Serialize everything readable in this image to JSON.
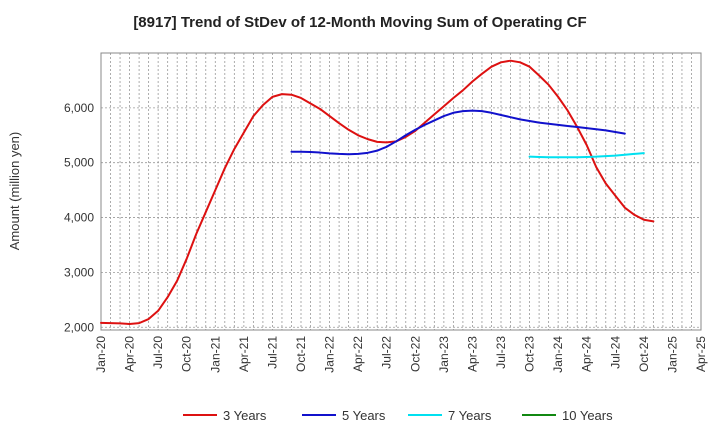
{
  "chart_data": {
    "type": "line",
    "title": "[8917]  Trend of StDev of 12-Month Moving Sum of Operating CF",
    "ylabel": "Amount (million yen)",
    "xlabel": "",
    "ylim": [
      1950,
      7000
    ],
    "yticks": [
      2000,
      3000,
      4000,
      5000,
      6000
    ],
    "ytick_labels": [
      "2,000",
      "3,000",
      "4,000",
      "5,000",
      "6,000"
    ],
    "x_start": "2020-01",
    "x_end": "2025-04",
    "xtick_labels": [
      "Jan-20",
      "Apr-20",
      "Jul-20",
      "Oct-20",
      "Jan-21",
      "Apr-21",
      "Jul-21",
      "Oct-21",
      "Jan-22",
      "Apr-22",
      "Jul-22",
      "Oct-22",
      "Jan-23",
      "Apr-23",
      "Jul-23",
      "Oct-23",
      "Jan-24",
      "Apr-24",
      "Jul-24",
      "Oct-24",
      "Jan-25",
      "Apr-25"
    ],
    "grid": true,
    "legend_position": "bottom",
    "series": [
      {
        "name": "3 Years",
        "color": "#dd1111",
        "start": "2020-01",
        "values": [
          2080,
          2075,
          2070,
          2060,
          2075,
          2150,
          2300,
          2550,
          2850,
          3250,
          3700,
          4100,
          4500,
          4900,
          5250,
          5550,
          5850,
          6050,
          6200,
          6250,
          6240,
          6180,
          6080,
          5980,
          5850,
          5720,
          5600,
          5500,
          5430,
          5380,
          5370,
          5390,
          5470,
          5580,
          5730,
          5880,
          6030,
          6180,
          6320,
          6480,
          6620,
          6750,
          6830,
          6860,
          6830,
          6750,
          6590,
          6420,
          6200,
          5950,
          5650,
          5320,
          4920,
          4620,
          4400,
          4180,
          4050,
          3960,
          3930
        ]
      },
      {
        "name": "5 Years",
        "color": "#1111cc",
        "start": "2021-09",
        "values": [
          5200,
          5200,
          5195,
          5185,
          5170,
          5160,
          5155,
          5160,
          5180,
          5220,
          5290,
          5390,
          5500,
          5600,
          5690,
          5770,
          5850,
          5910,
          5940,
          5950,
          5940,
          5910,
          5870,
          5830,
          5790,
          5760,
          5730,
          5710,
          5690,
          5670,
          5650,
          5630,
          5610,
          5590,
          5560,
          5530
        ]
      },
      {
        "name": "7 Years",
        "color": "#00e0f0",
        "start": "2023-10",
        "values": [
          5110,
          5105,
          5100,
          5100,
          5100,
          5100,
          5105,
          5110,
          5120,
          5130,
          5145,
          5160,
          5175
        ]
      },
      {
        "name": "10 Years",
        "color": "#118811",
        "start": "",
        "values": []
      }
    ]
  }
}
